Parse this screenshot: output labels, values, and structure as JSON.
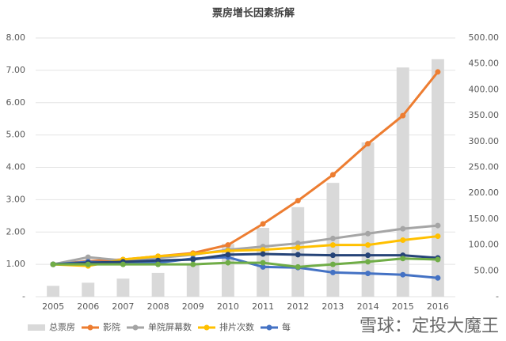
{
  "chart_data": {
    "type": "bar-line",
    "title": "票房增长因素拆解",
    "categories": [
      "2005",
      "2006",
      "2007",
      "2008",
      "2009",
      "2010",
      "2011",
      "2012",
      "2013",
      "2014",
      "2015",
      "2016"
    ],
    "series": [
      {
        "name": "总票房",
        "type": "bar",
        "axis": "y2",
        "color": "#d9d9d9",
        "values": [
          21,
          27,
          35,
          46,
          63,
          102,
          133,
          173,
          220,
          298,
          443,
          459
        ]
      },
      {
        "name": "影院",
        "type": "line",
        "color": "#ed7d31",
        "values": [
          1.0,
          1.1,
          1.15,
          1.25,
          1.35,
          1.6,
          2.25,
          2.97,
          3.77,
          4.73,
          5.6,
          6.95
        ]
      },
      {
        "name": "单院屏幕数",
        "type": "line",
        "color": "#a5a5a5",
        "values": [
          1.0,
          1.22,
          1.12,
          1.2,
          1.3,
          1.45,
          1.55,
          1.65,
          1.8,
          1.95,
          2.1,
          2.2
        ]
      },
      {
        "name": "排片次数",
        "type": "line",
        "color": "#ffc000",
        "values": [
          1.0,
          0.95,
          1.15,
          1.25,
          1.32,
          1.42,
          1.45,
          1.52,
          1.6,
          1.6,
          1.75,
          1.87
        ]
      },
      {
        "name": "每",
        "type": "line",
        "color": "#4472c4",
        "values": [
          1.0,
          1.08,
          1.05,
          1.05,
          1.18,
          1.22,
          0.92,
          0.9,
          0.75,
          0.72,
          0.68,
          0.58
        ]
      },
      {
        "type": "line",
        "color": "#264478",
        "values": [
          1.0,
          1.05,
          1.08,
          1.12,
          1.15,
          1.3,
          1.32,
          1.3,
          1.28,
          1.28,
          1.28,
          1.2
        ]
      },
      {
        "type": "line",
        "color": "#70ad47",
        "values": [
          1.0,
          1.0,
          1.0,
          1.0,
          1.0,
          1.05,
          1.05,
          0.92,
          1.0,
          1.08,
          1.18,
          1.15
        ]
      }
    ],
    "ylim": [
      0,
      8
    ],
    "yticks": [
      {
        "value": 0,
        "label": "-"
      },
      {
        "value": 1,
        "label": "1.00"
      },
      {
        "value": 2,
        "label": "2.00"
      },
      {
        "value": 3,
        "label": "3.00"
      },
      {
        "value": 4,
        "label": "4.00"
      },
      {
        "value": 5,
        "label": "5.00"
      },
      {
        "value": 6,
        "label": "6.00"
      },
      {
        "value": 7,
        "label": "7.00"
      },
      {
        "value": 8,
        "label": "8.00"
      }
    ],
    "y2lim": [
      0,
      500
    ],
    "y2ticks": [
      {
        "value": 0,
        "label": "-"
      },
      {
        "value": 50,
        "label": "50.00"
      },
      {
        "value": 100,
        "label": "100.00"
      },
      {
        "value": 150,
        "label": "150.00"
      },
      {
        "value": 200,
        "label": "200.00"
      },
      {
        "value": 250,
        "label": "250.00"
      },
      {
        "value": 300,
        "label": "300.00"
      },
      {
        "value": 350,
        "label": "350.00"
      },
      {
        "value": 400,
        "label": "400.00"
      },
      {
        "value": 450,
        "label": "450.00"
      },
      {
        "value": 500,
        "label": "500.00"
      }
    ],
    "grid": true,
    "watermark": "雪球：定投大魔王"
  }
}
